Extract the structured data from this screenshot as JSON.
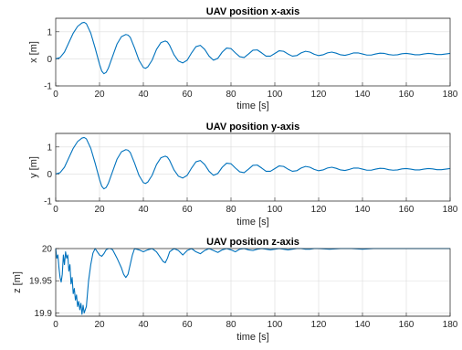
{
  "chart_data": [
    {
      "type": "line",
      "title": "UAV position x-axis",
      "xlabel": "time [s]",
      "ylabel": "x [m]",
      "xlim": [
        0,
        180
      ],
      "ylim": [
        -1,
        1.5
      ],
      "xticks": [
        0,
        20,
        40,
        60,
        80,
        100,
        120,
        140,
        160,
        180
      ],
      "yticks": [
        -1,
        0,
        1
      ],
      "grid": true,
      "color": "#0072BD",
      "series": [
        {
          "x": [
            0,
            2,
            4,
            6,
            8,
            10,
            12,
            13,
            14,
            16,
            18,
            20,
            21,
            22,
            23,
            24,
            26,
            28,
            30,
            32,
            33,
            34,
            36,
            38,
            40,
            41,
            42,
            44,
            46,
            48,
            50,
            51,
            52,
            54,
            56,
            58,
            60,
            62,
            64,
            66,
            68,
            70,
            72,
            74,
            76,
            78,
            80,
            82,
            84,
            86,
            88,
            90,
            92,
            94,
            96,
            98,
            100,
            102,
            104,
            106,
            108,
            110,
            112,
            114,
            116,
            118,
            120,
            122,
            124,
            126,
            128,
            130,
            132,
            134,
            136,
            138,
            140,
            142,
            144,
            146,
            148,
            150,
            152,
            154,
            156,
            158,
            160,
            162,
            164,
            166,
            168,
            170,
            172,
            174,
            176,
            178,
            180
          ],
          "y": [
            0,
            0.05,
            0.25,
            0.6,
            0.95,
            1.2,
            1.33,
            1.35,
            1.3,
            0.95,
            0.4,
            -0.2,
            -0.45,
            -0.55,
            -0.5,
            -0.35,
            0.1,
            0.55,
            0.82,
            0.9,
            0.88,
            0.8,
            0.4,
            -0.05,
            -0.32,
            -0.35,
            -0.3,
            -0.05,
            0.35,
            0.6,
            0.66,
            0.62,
            0.5,
            0.15,
            -0.08,
            -0.15,
            -0.05,
            0.22,
            0.45,
            0.5,
            0.35,
            0.1,
            -0.05,
            0.02,
            0.25,
            0.4,
            0.38,
            0.22,
            0.08,
            0.05,
            0.18,
            0.32,
            0.33,
            0.22,
            0.1,
            0.1,
            0.2,
            0.3,
            0.28,
            0.18,
            0.1,
            0.12,
            0.22,
            0.28,
            0.25,
            0.17,
            0.12,
            0.15,
            0.22,
            0.25,
            0.21,
            0.15,
            0.13,
            0.17,
            0.22,
            0.22,
            0.18,
            0.14,
            0.14,
            0.18,
            0.21,
            0.2,
            0.16,
            0.14,
            0.15,
            0.19,
            0.2,
            0.18,
            0.15,
            0.15,
            0.18,
            0.2,
            0.19,
            0.16,
            0.16,
            0.18,
            0.2
          ]
        }
      ]
    },
    {
      "type": "line",
      "title": "UAV position y-axis",
      "xlabel": "time [s]",
      "ylabel": "y [m]",
      "xlim": [
        0,
        180
      ],
      "ylim": [
        -1,
        1.5
      ],
      "xticks": [
        0,
        20,
        40,
        60,
        80,
        100,
        120,
        140,
        160,
        180
      ],
      "yticks": [
        -1,
        0,
        1
      ],
      "grid": true,
      "color": "#0072BD",
      "series": [
        {
          "x": [
            0,
            2,
            4,
            6,
            8,
            10,
            12,
            13,
            14,
            16,
            18,
            20,
            21,
            22,
            23,
            24,
            26,
            28,
            30,
            32,
            33,
            34,
            36,
            38,
            40,
            41,
            42,
            44,
            46,
            48,
            50,
            51,
            52,
            54,
            56,
            58,
            60,
            62,
            64,
            66,
            68,
            70,
            72,
            74,
            76,
            78,
            80,
            82,
            84,
            86,
            88,
            90,
            92,
            94,
            96,
            98,
            100,
            102,
            104,
            106,
            108,
            110,
            112,
            114,
            116,
            118,
            120,
            122,
            124,
            126,
            128,
            130,
            132,
            134,
            136,
            138,
            140,
            142,
            144,
            146,
            148,
            150,
            152,
            154,
            156,
            158,
            160,
            162,
            164,
            166,
            168,
            170,
            172,
            174,
            176,
            178,
            180
          ],
          "y": [
            0,
            0.05,
            0.25,
            0.6,
            0.95,
            1.2,
            1.33,
            1.35,
            1.3,
            0.95,
            0.4,
            -0.2,
            -0.45,
            -0.55,
            -0.5,
            -0.35,
            0.1,
            0.55,
            0.82,
            0.9,
            0.88,
            0.8,
            0.4,
            -0.05,
            -0.32,
            -0.35,
            -0.3,
            -0.05,
            0.35,
            0.6,
            0.66,
            0.62,
            0.5,
            0.15,
            -0.08,
            -0.15,
            -0.05,
            0.22,
            0.45,
            0.5,
            0.35,
            0.1,
            -0.05,
            0.02,
            0.25,
            0.4,
            0.38,
            0.22,
            0.08,
            0.05,
            0.18,
            0.32,
            0.33,
            0.22,
            0.1,
            0.1,
            0.2,
            0.3,
            0.28,
            0.18,
            0.1,
            0.12,
            0.22,
            0.28,
            0.25,
            0.17,
            0.12,
            0.15,
            0.22,
            0.25,
            0.21,
            0.15,
            0.13,
            0.17,
            0.22,
            0.22,
            0.18,
            0.14,
            0.14,
            0.18,
            0.21,
            0.2,
            0.16,
            0.14,
            0.15,
            0.19,
            0.2,
            0.18,
            0.15,
            0.15,
            0.18,
            0.2,
            0.19,
            0.16,
            0.16,
            0.18,
            0.2
          ]
        }
      ]
    },
    {
      "type": "line",
      "title": "UAV position z-axis",
      "xlabel": "time [s]",
      "ylabel": "z [m]",
      "xlim": [
        0,
        180
      ],
      "ylim": [
        19.895,
        20
      ],
      "xticks": [
        0,
        20,
        40,
        60,
        80,
        100,
        120,
        140,
        160,
        180
      ],
      "yticks": [
        19.9,
        19.95,
        20
      ],
      "grid": true,
      "color": "#0072BD",
      "series": [
        {
          "x": [
            0,
            0.5,
            1,
            1.5,
            2,
            2.5,
            3,
            3.5,
            4,
            4.5,
            5,
            5.5,
            6,
            6.5,
            7,
            7.5,
            8,
            8.5,
            9,
            9.5,
            10,
            10.5,
            11,
            11.5,
            12,
            12.5,
            13,
            13.5,
            14,
            14.5,
            15,
            16,
            17,
            18,
            19,
            20,
            21,
            22,
            23,
            24,
            25,
            26,
            28,
            30,
            31,
            32,
            33,
            34,
            35,
            36,
            38,
            40,
            42,
            44,
            46,
            48,
            49,
            50,
            51,
            52,
            54,
            56,
            58,
            60,
            62,
            64,
            66,
            68,
            70,
            72,
            74,
            76,
            78,
            80,
            82,
            84,
            86,
            88,
            90,
            92,
            94,
            96,
            98,
            100,
            102,
            104,
            106,
            108,
            110,
            112,
            114,
            116,
            118,
            120,
            125,
            130,
            135,
            140,
            145,
            150,
            155,
            160,
            165,
            170,
            175,
            180
          ],
          "y": [
            20,
            19.985,
            19.99,
            19.97,
            19.955,
            19.948,
            19.96,
            19.99,
            19.975,
            19.995,
            19.985,
            19.99,
            19.965,
            19.975,
            19.945,
            19.955,
            19.93,
            19.938,
            19.92,
            19.928,
            19.91,
            19.918,
            19.905,
            19.915,
            19.898,
            19.912,
            19.9,
            19.905,
            19.91,
            19.93,
            19.95,
            19.975,
            19.993,
            20,
            19.995,
            19.99,
            19.988,
            19.992,
            19.998,
            20,
            20,
            19.998,
            19.985,
            19.97,
            19.96,
            19.955,
            19.96,
            19.975,
            19.99,
            20,
            19.998,
            19.995,
            19.998,
            20,
            19.995,
            19.985,
            19.98,
            19.978,
            19.985,
            19.995,
            20,
            19.997,
            19.99,
            19.997,
            20,
            19.995,
            19.992,
            19.997,
            20,
            19.997,
            19.994,
            19.998,
            20,
            19.998,
            19.995,
            19.999,
            20,
            19.998,
            19.997,
            19.999,
            20,
            19.999,
            19.998,
            19.999,
            20,
            19.999,
            19.998,
            19.999,
            20,
            20,
            19.999,
            19.999,
            20,
            20,
            19.999,
            20,
            20,
            19.999,
            20,
            20,
            20,
            20,
            20,
            20,
            20,
            20
          ]
        }
      ]
    }
  ]
}
